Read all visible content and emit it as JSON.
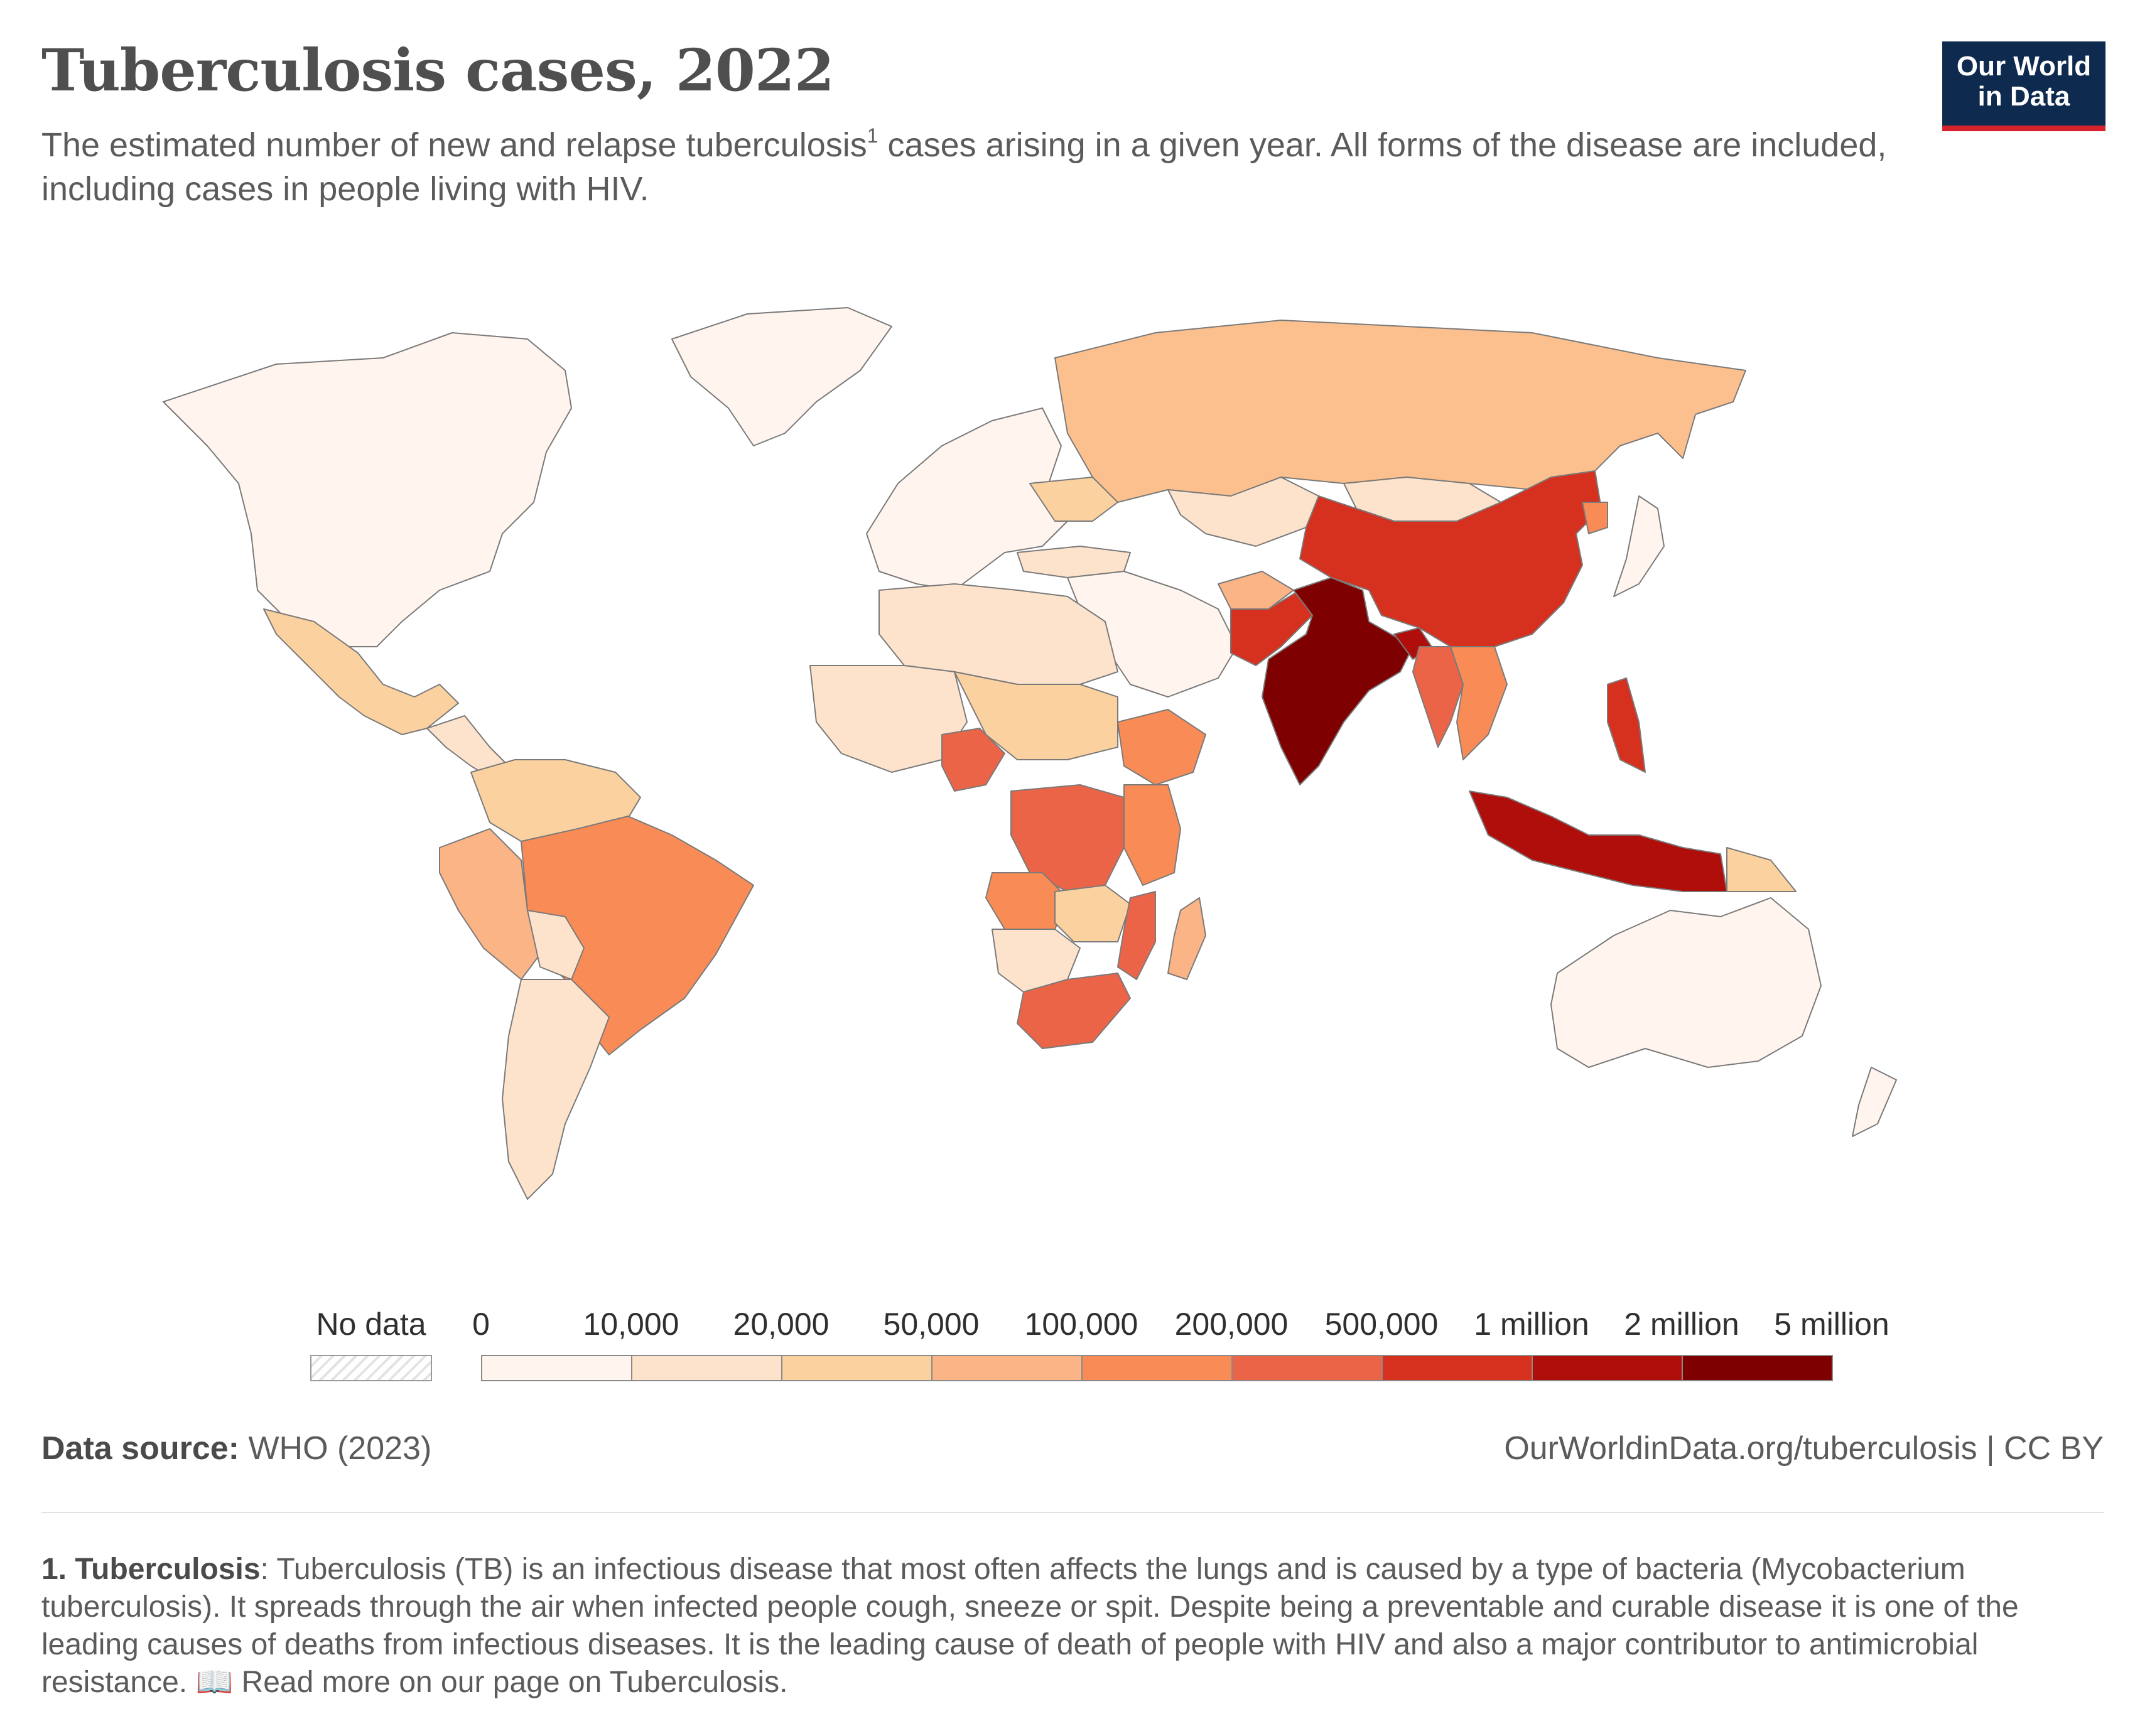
{
  "header": {
    "title": "Tuberculosis cases, 2022",
    "subtitle_part1": "The estimated number of new and relapse tuberculosis",
    "subtitle_sup": "1",
    "subtitle_part2": " cases arising in a given year. All forms of the disease are included, including cases in people living with HIV."
  },
  "logo": {
    "line1": "Our World",
    "line2": "in Data",
    "bg_color": "#0e2a4e",
    "accent_color": "#d6222c"
  },
  "legend": {
    "no_data_label": "No data",
    "tick_labels": [
      "0",
      "10,000",
      "20,000",
      "50,000",
      "100,000",
      "200,000",
      "500,000",
      "1 million",
      "2 million",
      "5 million"
    ],
    "bin_colors": [
      "#fff5ee",
      "#fde3cb",
      "#fcd1a0",
      "#fbb486",
      "#f98c56",
      "#ec6447",
      "#d6301f",
      "#b00e0b",
      "#7f0000"
    ]
  },
  "regions": [
    {
      "name": "North America",
      "color": "#fff5ee"
    },
    {
      "name": "Greenland",
      "color": "#fff5ee"
    },
    {
      "name": "Mexico",
      "color": "#fcd1a0"
    },
    {
      "name": "Central America",
      "color": "#fde3cb"
    },
    {
      "name": "Colombia & Venezuela",
      "color": "#fcd1a0"
    },
    {
      "name": "Peru",
      "color": "#fbb486"
    },
    {
      "name": "Brazil",
      "color": "#f98c56"
    },
    {
      "name": "Bolivia",
      "color": "#fde3cb"
    },
    {
      "name": "Argentina & Chile",
      "color": "#fde3cb"
    },
    {
      "name": "Europe",
      "color": "#fff5ee"
    },
    {
      "name": "Ukraine",
      "color": "#fcd1a0"
    },
    {
      "name": "Turkey",
      "color": "#fde3cb"
    },
    {
      "name": "Russia",
      "color": "#fcc08e"
    },
    {
      "name": "Kazakhstan",
      "color": "#fde3cb"
    },
    {
      "name": "Mongolia",
      "color": "#fde3cb"
    },
    {
      "name": "Middle East",
      "color": "#fff5ee"
    },
    {
      "name": "Afghanistan",
      "color": "#fbb486"
    },
    {
      "name": "Pakistan",
      "color": "#d6301f"
    },
    {
      "name": "India",
      "color": "#7f0000"
    },
    {
      "name": "Bangladesh",
      "color": "#b00e0b"
    },
    {
      "name": "China",
      "color": "#d6301f"
    },
    {
      "name": "Myanmar",
      "color": "#ec6447"
    },
    {
      "name": "Thailand & Vietnam",
      "color": "#f98c56"
    },
    {
      "name": "North Korea",
      "color": "#f98c56"
    },
    {
      "name": "Philippines",
      "color": "#d6301f"
    },
    {
      "name": "Indonesia",
      "color": "#b00e0b"
    },
    {
      "name": "Papua New Guinea",
      "color": "#fcd1a0"
    },
    {
      "name": "Australia",
      "color": "#fff5ee"
    },
    {
      "name": "New Zealand",
      "color": "#fff5ee"
    },
    {
      "name": "Japan",
      "color": "#fff5ee"
    },
    {
      "name": "North Africa",
      "color": "#fde3cb"
    },
    {
      "name": "West Africa",
      "color": "#fde3cb"
    },
    {
      "name": "Nigeria",
      "color": "#ec6447"
    },
    {
      "name": "Sahel",
      "color": "#fcd1a0"
    },
    {
      "name": "Ethiopia",
      "color": "#f98c56"
    },
    {
      "name": "Kenya & Tanzania",
      "color": "#f98c56"
    },
    {
      "name": "DR Congo",
      "color": "#ec6447"
    },
    {
      "name": "Angola",
      "color": "#f98c56"
    },
    {
      "name": "Zambia & Zimbabwe",
      "color": "#fcd1a0"
    },
    {
      "name": "Mozambique",
      "color": "#ec6447"
    },
    {
      "name": "Namibia & Botswana",
      "color": "#fde3cb"
    },
    {
      "name": "South Africa",
      "color": "#ec6447"
    },
    {
      "name": "Madagascar",
      "color": "#fbb486"
    }
  ],
  "source": {
    "label": "Data source:",
    "value": " WHO (2023)"
  },
  "attribution": "OurWorldinData.org/tuberculosis | CC BY",
  "footnote": {
    "label": "1. Tuberculosis",
    "text": ": Tuberculosis (TB) is an infectious disease that most often affects the lungs and is caused by a type of bacteria (Mycobacterium tuberculosis). It spreads through the air when infected people cough, sneeze or spit. Despite being a preventable and curable disease it is one of the leading causes of deaths from infectious diseases. It is the leading cause of death of people with HIV and also a major contributor to antimicrobial resistance. 📖 Read more on our page on Tuberculosis."
  }
}
